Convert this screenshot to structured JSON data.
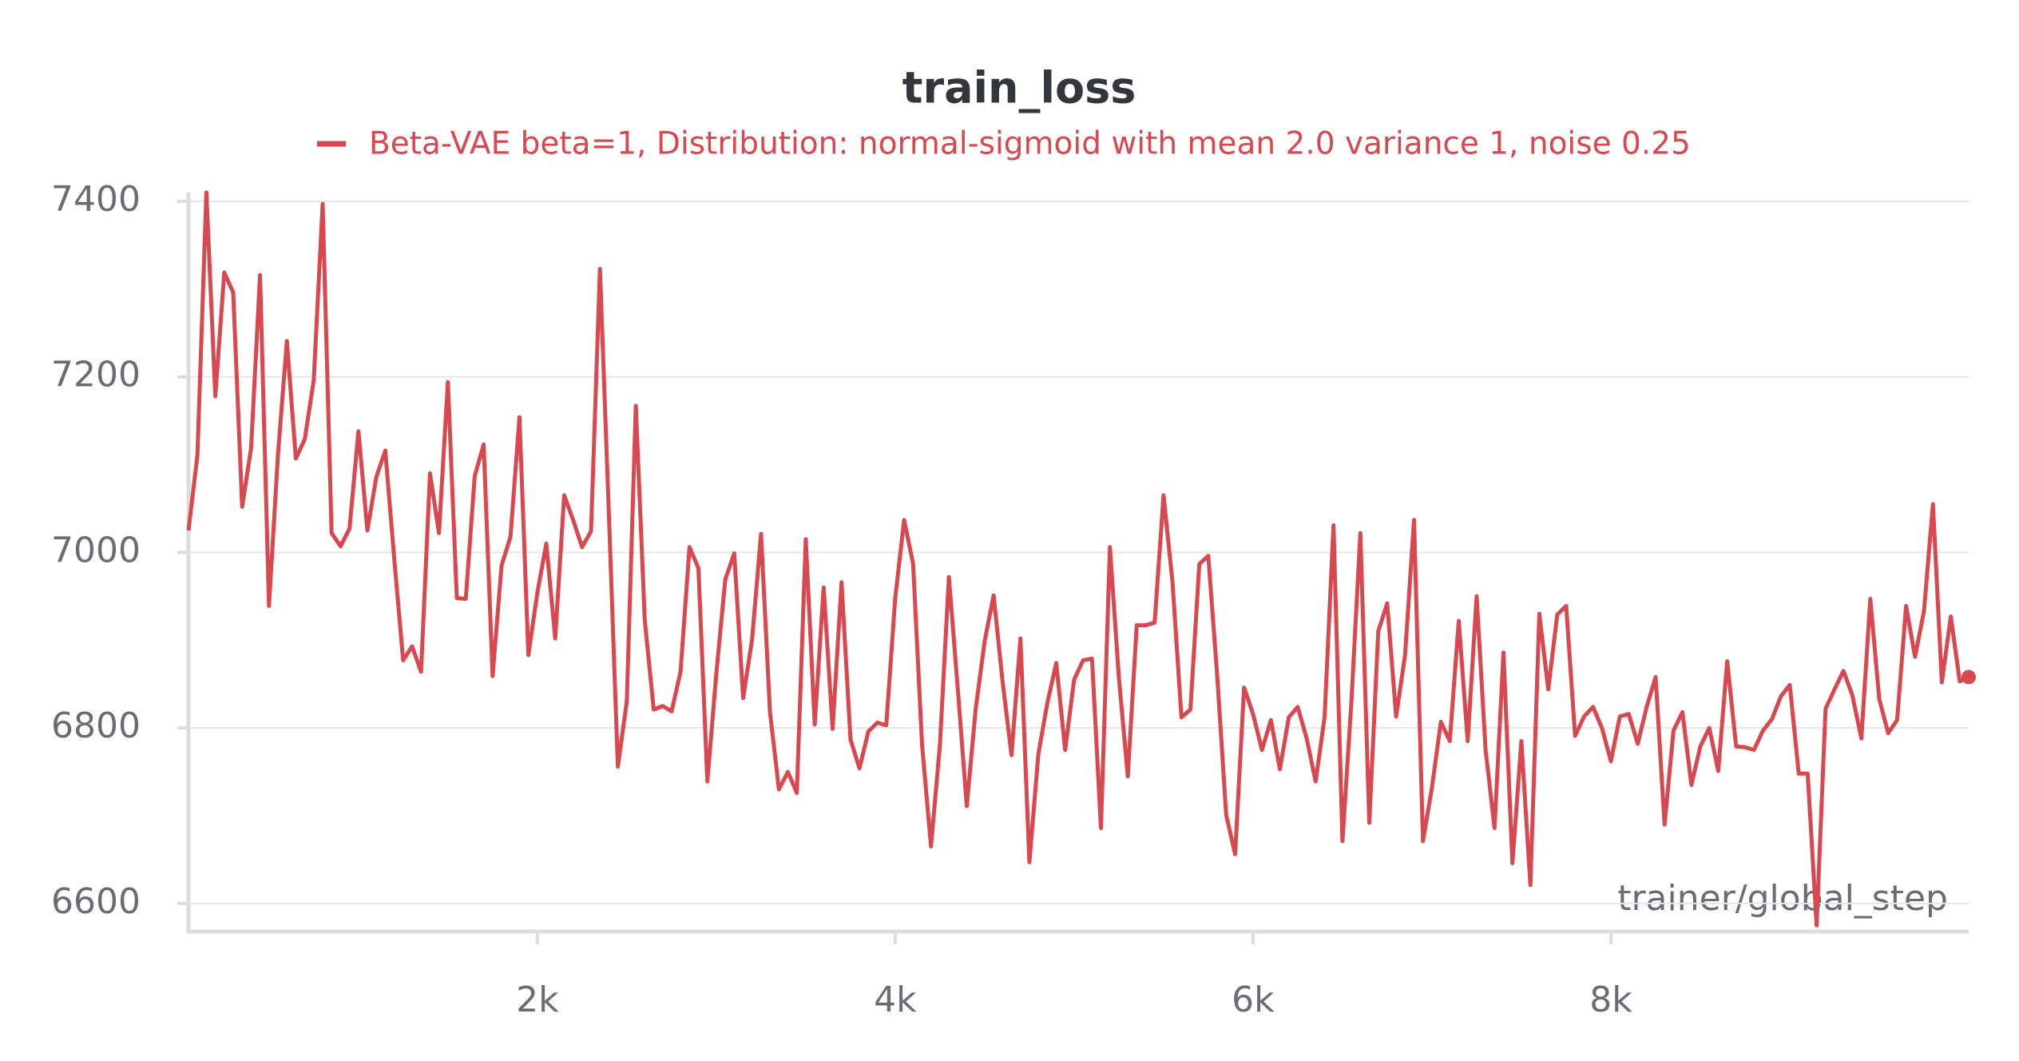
{
  "chart_data": {
    "type": "line",
    "title": "train_loss",
    "xlabel": "trainer/global_step",
    "x": [
      50,
      100,
      150,
      200,
      250,
      300,
      350,
      400,
      450,
      500,
      550,
      600,
      650,
      700,
      750,
      800,
      850,
      900,
      950,
      1000,
      1050,
      1100,
      1150,
      1200,
      1250,
      1300,
      1350,
      1400,
      1450,
      1500,
      1550,
      1600,
      1650,
      1700,
      1750,
      1800,
      1850,
      1900,
      1950,
      2000,
      2050,
      2100,
      2150,
      2200,
      2250,
      2300,
      2350,
      2400,
      2450,
      2500,
      2550,
      2600,
      2650,
      2700,
      2750,
      2800,
      2850,
      2900,
      2950,
      3000,
      3050,
      3100,
      3150,
      3200,
      3250,
      3300,
      3350,
      3400,
      3450,
      3500,
      3550,
      3600,
      3650,
      3700,
      3750,
      3800,
      3850,
      3900,
      3950,
      4000,
      4050,
      4100,
      4150,
      4200,
      4250,
      4300,
      4350,
      4400,
      4450,
      4500,
      4550,
      4600,
      4650,
      4700,
      4750,
      4800,
      4850,
      4900,
      4950,
      5000,
      5050,
      5100,
      5150,
      5200,
      5250,
      5300,
      5350,
      5400,
      5450,
      5500,
      5550,
      5600,
      5650,
      5700,
      5750,
      5800,
      5850,
      5900,
      5950,
      6000,
      6050,
      6100,
      6150,
      6200,
      6250,
      6300,
      6350,
      6400,
      6450,
      6500,
      6550,
      6600,
      6650,
      6700,
      6750,
      6800,
      6850,
      6900,
      6950,
      7000,
      7050,
      7100,
      7150,
      7200,
      7250,
      7300,
      7350,
      7400,
      7450,
      7500,
      7550,
      7600,
      7650,
      7700,
      7750,
      7800,
      7850,
      7900,
      7950,
      8000,
      8050,
      8100,
      8150,
      8200,
      8250,
      8300,
      8350,
      8400,
      8450,
      8500,
      8550,
      8600,
      8650,
      8700,
      8750,
      8800,
      8850,
      8900,
      8950,
      9000,
      9050,
      9100,
      9150,
      9200,
      9250,
      9300,
      9350,
      9400,
      9450,
      9500,
      9550,
      9600,
      9650,
      9700,
      9750,
      9800,
      9850,
      9900,
      9950,
      10000
    ],
    "series": [
      {
        "name": "Beta-VAE beta=1, Distribution: normal-sigmoid with mean 2.0 variance 1, noise 0.25",
        "color": "#d9474f",
        "values": [
          7025,
          7111,
          7410,
          7178,
          7319,
          7296,
          7052,
          7119,
          7316,
          6939,
          7111,
          7241,
          7107,
          7129,
          7196,
          7397,
          7022,
          7007,
          7027,
          7138,
          7025,
          7086,
          7116,
          6993,
          6877,
          6893,
          6864,
          7090,
          7022,
          7194,
          6948,
          6947,
          7087,
          7123,
          6859,
          6985,
          7018,
          7154,
          6883,
          6954,
          7010,
          6902,
          7065,
          7037,
          7006,
          7024,
          7323,
          7043,
          6756,
          6830,
          7167,
          6923,
          6821,
          6825,
          6819,
          6864,
          7006,
          6982,
          6739,
          6862,
          6969,
          6999,
          6834,
          6901,
          7021,
          6818,
          6730,
          6750,
          6726,
          7015,
          6804,
          6960,
          6799,
          6966,
          6787,
          6754,
          6796,
          6806,
          6803,
          6948,
          7037,
          6987,
          6781,
          6665,
          6781,
          6972,
          6844,
          6711,
          6822,
          6899,
          6951,
          6853,
          6769,
          6902,
          6647,
          6770,
          6828,
          6874,
          6775,
          6855,
          6877,
          6879,
          6686,
          7006,
          6858,
          6745,
          6917,
          6917,
          6920,
          7065,
          6966,
          6812,
          6821,
          6987,
          6996,
          6859,
          6701,
          6656,
          6846,
          6816,
          6775,
          6809,
          6753,
          6812,
          6824,
          6788,
          6739,
          6812,
          7031,
          6671,
          6830,
          7022,
          6692,
          6910,
          6942,
          6813,
          6883,
          7037,
          6671,
          6732,
          6807,
          6785,
          6922,
          6785,
          6950,
          6775,
          6686,
          6886,
          6646,
          6785,
          6621,
          6930,
          6844,
          6929,
          6939,
          6791,
          6813,
          6824,
          6800,
          6762,
          6813,
          6816,
          6782,
          6824,
          6858,
          6690,
          6797,
          6818,
          6735,
          6779,
          6800,
          6751,
          6876,
          6779,
          6778,
          6775,
          6797,
          6810,
          6836,
          6849,
          6748,
          6748,
          6575,
          6822,
          6844,
          6865,
          6837,
          6788,
          6947,
          6833,
          6794,
          6809,
          6939,
          6881,
          6933,
          7055,
          6852,
          6927,
          6853,
          6858
        ]
      }
    ],
    "xlim": [
      50,
      10000
    ],
    "ylim": [
      6568,
      7410
    ],
    "xticks": [
      {
        "value": 2000,
        "label": "2k"
      },
      {
        "value": 4000,
        "label": "4k"
      },
      {
        "value": 6000,
        "label": "6k"
      },
      {
        "value": 8000,
        "label": "8k"
      }
    ],
    "yticks": [
      6600,
      6800,
      7000,
      7200,
      7400
    ],
    "grid": true
  }
}
